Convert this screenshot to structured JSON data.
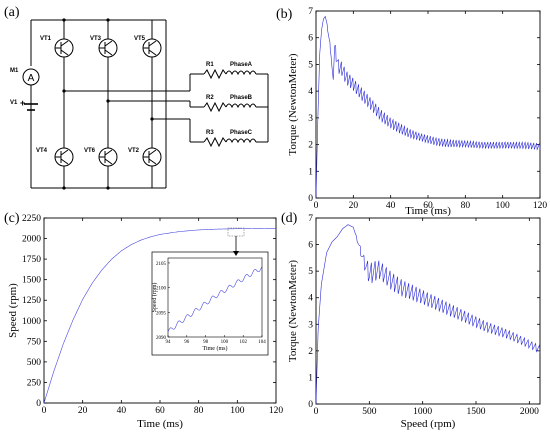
{
  "panels": {
    "a": {
      "label": "(a)"
    },
    "b": {
      "label": "(b)"
    },
    "c": {
      "label": "(c)"
    },
    "d": {
      "label": "(d)"
    }
  },
  "circuit": {
    "meter_label": "M1",
    "meter_symbol": "A",
    "source_label": "V1",
    "source_polarity": "+",
    "transistors": [
      "VT1",
      "VT3",
      "VT5",
      "VT4",
      "VT6",
      "VT2"
    ],
    "resistors": [
      "R1",
      "R2",
      "R3"
    ],
    "phases": [
      "PhaseA",
      "PhaseB",
      "PhaseC"
    ],
    "line_color": "#000000"
  },
  "chart_data": [
    {
      "id": "b",
      "type": "line",
      "xlabel": "Time (ms)",
      "ylabel": "Torque (NewtonMeter)",
      "xlim": [
        0,
        120
      ],
      "ylim": [
        0,
        7
      ],
      "xticks": [
        0,
        20,
        40,
        60,
        80,
        100,
        120
      ],
      "yticks": [
        0,
        1,
        2,
        3,
        4,
        5,
        6,
        7
      ],
      "series": [
        {
          "color": "#2b2bd6",
          "x": [
            0,
            1,
            2,
            3,
            4,
            5,
            6,
            8,
            9,
            10,
            12,
            14,
            16,
            20,
            25,
            30,
            35,
            40,
            45,
            50,
            55,
            60,
            65,
            70,
            80,
            90,
            100,
            110,
            120
          ],
          "y": [
            0,
            3.0,
            5.4,
            6.3,
            6.7,
            6.8,
            6.5,
            5.6,
            4.6,
            5.9,
            5.2,
            5.1,
            4.8,
            4.5,
            4.1,
            3.7,
            3.3,
            3.0,
            2.8,
            2.6,
            2.45,
            2.35,
            2.25,
            2.2,
            2.15,
            2.1,
            2.1,
            2.1,
            2.05
          ],
          "ripple_amplitude": [
            0,
            0,
            0,
            0,
            0,
            0,
            0.1,
            0.3,
            0.5,
            0.5,
            0.55,
            0.55,
            0.55,
            0.5,
            0.5,
            0.45,
            0.45,
            0.4,
            0.4,
            0.35,
            0.3,
            0.3,
            0.3,
            0.3,
            0.25,
            0.25,
            0.25,
            0.25,
            0.25
          ]
        }
      ]
    },
    {
      "id": "c",
      "type": "line",
      "xlabel": "Time (ms)",
      "ylabel": "Speed (rpm)",
      "xlim": [
        0,
        120
      ],
      "ylim": [
        0,
        2250
      ],
      "xticks": [
        0,
        20,
        40,
        60,
        80,
        100,
        120
      ],
      "yticks": [
        0,
        250,
        500,
        750,
        1000,
        1250,
        1500,
        1750,
        2000,
        2250
      ],
      "series": [
        {
          "color": "#4a4ae0",
          "x": [
            0,
            5,
            10,
            15,
            20,
            25,
            30,
            35,
            40,
            45,
            50,
            55,
            60,
            70,
            80,
            90,
            100,
            110,
            120
          ],
          "y": [
            0,
            380,
            720,
            1010,
            1260,
            1460,
            1620,
            1750,
            1850,
            1925,
            1980,
            2020,
            2050,
            2085,
            2105,
            2115,
            2120,
            2123,
            2125
          ]
        }
      ],
      "inset": {
        "xlabel": "Time (ms)",
        "ylabel": "Speed (rpm)",
        "xlim": [
          94,
          104
        ],
        "ylim": [
          2090,
          2106
        ],
        "xticks": [
          94,
          96,
          98,
          100,
          102,
          104
        ],
        "yticks": [
          2090,
          2095,
          2100,
          2105
        ],
        "x": [
          94,
          95,
          96,
          97,
          98,
          99,
          100,
          101,
          102,
          103,
          104
        ],
        "y": [
          2091.0,
          2092.6,
          2094.0,
          2095.4,
          2096.8,
          2098.2,
          2099.4,
          2100.6,
          2101.8,
          2103.0,
          2104.0
        ]
      }
    },
    {
      "id": "d",
      "type": "line",
      "xlabel": "Speed (rpm)",
      "ylabel": "Torque (NewtonMeter)",
      "xlim": [
        0,
        2100
      ],
      "ylim": [
        0,
        7
      ],
      "xticks": [
        0,
        500,
        1000,
        1500,
        2000
      ],
      "yticks": [
        0,
        1,
        2,
        3,
        4,
        5,
        6,
        7
      ],
      "series": [
        {
          "color": "#2b2bd6",
          "x": [
            0,
            20,
            50,
            100,
            150,
            200,
            250,
            300,
            350,
            400,
            450,
            500,
            550,
            600,
            700,
            800,
            900,
            1000,
            1200,
            1400,
            1600,
            1800,
            2000,
            2100
          ],
          "y": [
            0,
            2.8,
            4.5,
            5.7,
            6.1,
            6.3,
            6.6,
            6.75,
            6.65,
            6.1,
            5.6,
            5.3,
            5.4,
            5.4,
            5.0,
            4.7,
            4.5,
            4.3,
            3.9,
            3.5,
            3.1,
            2.8,
            2.4,
            2.2
          ],
          "ripple_amplitude": [
            0,
            0,
            0,
            0,
            0,
            0,
            0,
            0,
            0,
            0.2,
            0.5,
            0.8,
            0.8,
            0.7,
            0.7,
            0.65,
            0.6,
            0.55,
            0.5,
            0.45,
            0.4,
            0.35,
            0.3,
            0.3
          ]
        }
      ]
    }
  ]
}
